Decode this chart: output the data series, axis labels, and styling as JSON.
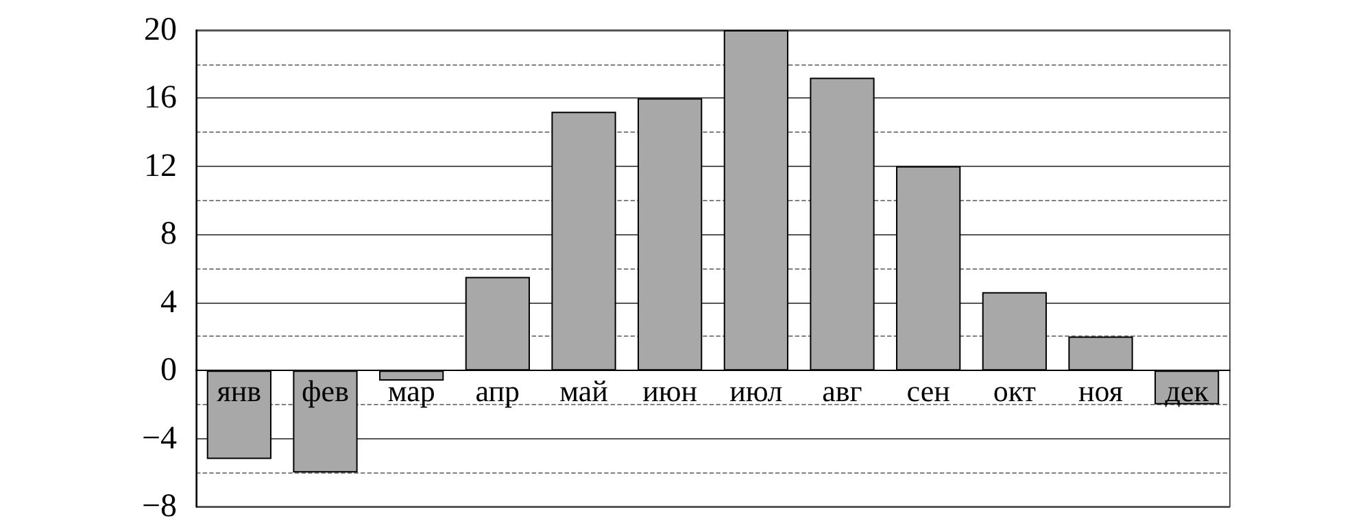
{
  "chart_data": {
    "type": "bar",
    "categories": [
      "янв",
      "фев",
      "мар",
      "апр",
      "май",
      "июн",
      "июл",
      "авг",
      "сен",
      "окт",
      "ноя",
      "дек"
    ],
    "values": [
      -5.2,
      -6,
      -0.6,
      5.5,
      15.2,
      16,
      20,
      17.2,
      12,
      4.6,
      2,
      -2
    ],
    "color": "#a8a8a8",
    "ylim": [
      -8,
      20
    ],
    "yticks": [
      {
        "value": -8,
        "label": "−8"
      },
      {
        "value": -4,
        "label": "−4"
      },
      0,
      4,
      8,
      12,
      16,
      20
    ],
    "grid": true
  }
}
